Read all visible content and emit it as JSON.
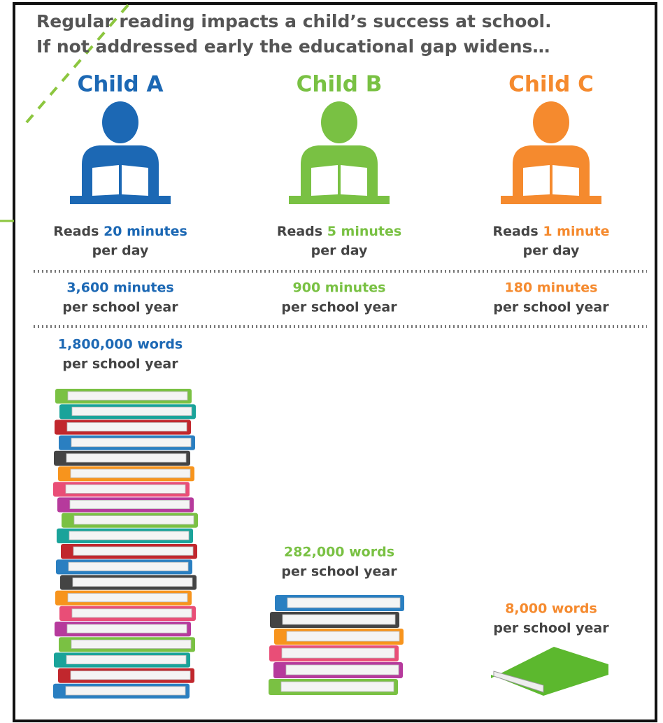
{
  "title": [
    "Regular reading impacts a child’s success at school.",
    "If not addressed early the educational gap widens…"
  ],
  "children": [
    {
      "name": "Child A",
      "reads": "Reads",
      "daily": "20 minutes",
      "daily_unit": "per day",
      "year_minutes": "3,600 minutes",
      "year_minutes_unit": "per school year",
      "year_words": "1,800,000 words",
      "year_words_unit": "per school year"
    },
    {
      "name": "Child B",
      "reads": "Reads",
      "daily": "5 minutes",
      "daily_unit": "per day",
      "year_minutes": "900 minutes",
      "year_minutes_unit": "per school year",
      "year_words": "282,000 words",
      "year_words_unit": "per school year"
    },
    {
      "name": "Child C",
      "reads": "Reads",
      "daily": "1 minute",
      "daily_unit": "per day",
      "year_minutes": "180 minutes",
      "year_minutes_unit": "per school year",
      "year_words": "8,000 words",
      "year_words_unit": "per school year"
    }
  ]
}
